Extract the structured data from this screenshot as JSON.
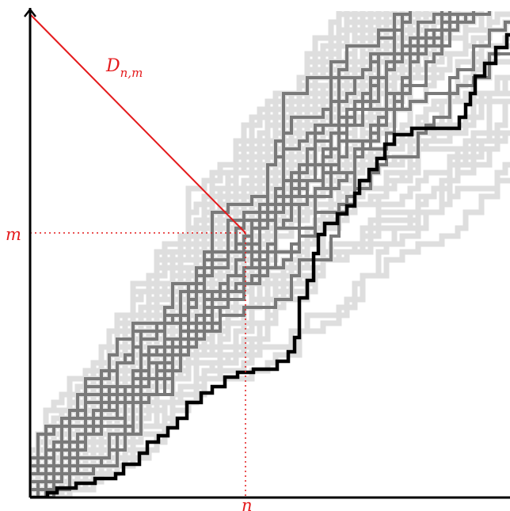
{
  "labels": {
    "distance": "D",
    "distance_sub": "n,m",
    "m": "m",
    "n": "n"
  },
  "colors": {
    "axis": "#000000",
    "accent": "#e41a1c",
    "light_paths": "#dedede",
    "medium_paths": "#7a7a7a",
    "highlight_path": "#000000"
  }
}
